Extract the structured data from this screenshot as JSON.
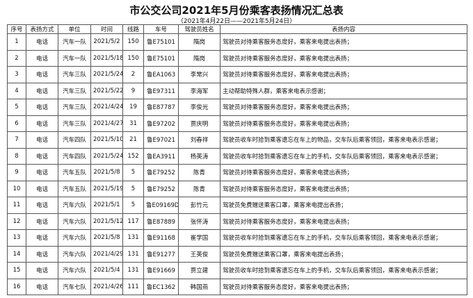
{
  "header": {
    "title": "市公交公司2021年5月份乘客表扬情况汇总表",
    "subtitle": "（2021年4月22日——2021年5月24日）"
  },
  "table": {
    "columns": [
      "序号",
      "表扬方式",
      "单位",
      "时间",
      "线路",
      "车号",
      "驾驶员姓名",
      "表扬内容"
    ],
    "rows": [
      [
        "1",
        "电话",
        "汽车一队",
        "2021/5/2",
        "150",
        "鲁E75101",
        "隋岗",
        "驾驶员对待乘客服务态度好，乘客来电提出表扬；"
      ],
      [
        "2",
        "电话",
        "汽车一队",
        "2021/5/18",
        "150",
        "鲁E75101",
        "隋岗",
        "驾驶员对待乘客服务态度好，乘客来电提出表扬；"
      ],
      [
        "3",
        "电话",
        "汽车三队",
        "2021/5/24",
        "2",
        "鲁EA1063",
        "李常兴",
        "驾驶员对待乘客服务态度好，乘客来电提出表扬；"
      ],
      [
        "4",
        "电话",
        "汽车三队",
        "2021/5/22",
        "9",
        "鲁E97311",
        "李海军",
        "主动帮助特殊人群，乘客来电表示感谢；"
      ],
      [
        "5",
        "电话",
        "汽车三队",
        "2021/4/24",
        "19",
        "鲁E87787",
        "李俊光",
        "驾驶员对待乘客服务态度好，乘客来电提出表扬；"
      ],
      [
        "6",
        "电话",
        "汽车三队",
        "2021/4/27",
        "31",
        "鲁E97202",
        "贾庆明",
        "驾驶员对待乘客服务态度好，乘客来电提出表扬；"
      ],
      [
        "7",
        "电话",
        "汽车四队",
        "2021/5/10",
        "21",
        "鲁E97021",
        "刘春祥",
        "驾驶员收车时拾到乘客遗忘在车上的物品，交车队后乘客领回，乘客来电表示感谢；"
      ],
      [
        "8",
        "电话",
        "汽车四队",
        "2021/5/24",
        "152",
        "鲁EA3911",
        "杨英涛",
        "驾驶员收车时拾到乘客遗忘在车上的手机，交车队后乘客领回，乘客来电表示感谢；"
      ],
      [
        "9",
        "电话",
        "汽车五队",
        "2021/5/8",
        "5",
        "鲁E79252",
        "陈青",
        "驾驶员对待乘客服务态度好，乘客来电提出表扬；"
      ],
      [
        "10",
        "电话",
        "汽车五队",
        "2021/5/19",
        "5",
        "鲁E79252",
        "陈青",
        "驾驶员对待乘客服务态度好，乘客来电提出表扬；"
      ],
      [
        "11",
        "电话",
        "汽车六队",
        "2021/5/1",
        "5",
        "鲁E09169D",
        "彭竹元",
        "驾驶员免费赠送乘客口罩，乘客来电提出表扬；"
      ],
      [
        "12",
        "电话",
        "汽车六队",
        "2021/5/12",
        "117",
        "鲁E87889",
        "张怀涛",
        "驾驶员对待乘客服务态度好，乘客来电提出表扬；"
      ],
      [
        "13",
        "电话",
        "汽车六队",
        "2021/5/8",
        "131",
        "鲁E91168",
        "崔学国",
        "驾驶员收车时拾到乘客遗忘在车上的手机，交车队后乘客领回，乘客来电表示感谢；"
      ],
      [
        "14",
        "电话",
        "汽车六队",
        "2021/4/29",
        "131",
        "鲁E91277",
        "王英俊",
        "驾驶员免费赠送乘客口罩，乘客来电提出表扬；"
      ],
      [
        "15",
        "电话",
        "汽车六队",
        "2021/5/4",
        "131",
        "鲁E91669",
        "贾立建",
        "驾驶员收车时拾到乘客遗忘在车上的手机，交车队后乘客领回，乘客来电表示感谢；"
      ],
      [
        "16",
        "电话",
        "汽车七队",
        "2021/4/26",
        "111",
        "鲁EC1362",
        "韩国燕",
        "驾驶员对待乘客服务态度好，乘客来电提出表扬；"
      ]
    ]
  }
}
